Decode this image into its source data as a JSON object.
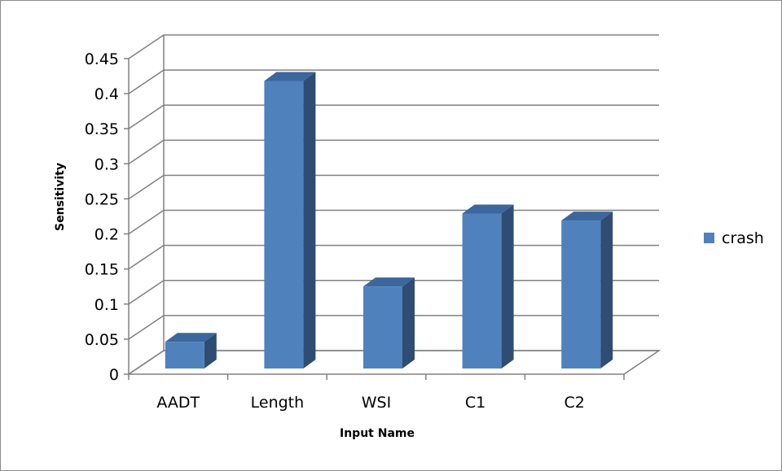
{
  "chart_data": {
    "type": "bar",
    "categories": [
      "AADT",
      "Length",
      "WSI",
      "C1",
      "C2"
    ],
    "series": [
      {
        "name": "crash",
        "values": [
          0.038,
          0.41,
          0.117,
          0.221,
          0.211
        ]
      }
    ],
    "title": "",
    "xlabel": "Input Name",
    "ylabel": "Sensitivity",
    "ylim": [
      0,
      0.45
    ],
    "yticks": [
      "0",
      "0.05",
      "0.1",
      "0.15",
      "0.2",
      "0.25",
      "0.3",
      "0.35",
      "0.4",
      "0.45"
    ],
    "grid": true,
    "legend_position": "right",
    "style": "3d-column",
    "colors": {
      "front": "#4F81BD",
      "side": "#2E4C74",
      "top": "#3B679D",
      "grid": "#808080"
    }
  }
}
